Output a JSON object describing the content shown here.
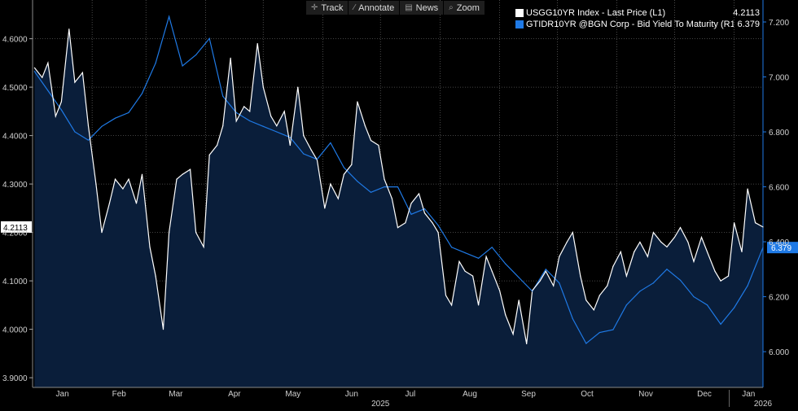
{
  "toolbar": {
    "items": [
      {
        "label": "Track",
        "icon": "crosshair-icon"
      },
      {
        "label": "Annotate",
        "icon": "pencil-icon"
      },
      {
        "label": "News",
        "icon": "newspaper-icon"
      },
      {
        "label": "Zoom",
        "icon": "magnifier-icon"
      }
    ]
  },
  "legend": {
    "items": [
      {
        "name": "USGG10YR Index - Last Price (L1)",
        "value": "4.2113",
        "color": "#ffffff"
      },
      {
        "name": "GTIDR10YR @BGN Corp - Bid Yield To Maturity (R1)",
        "value": "6.379",
        "color": "#1f7ae6"
      }
    ]
  },
  "chart_data": {
    "type": "line",
    "title": "",
    "xlabel": "",
    "ylabel": "",
    "x_axis": {
      "ticks": [
        "Jan",
        "Feb",
        "Mar",
        "Apr",
        "May",
        "Jun",
        "Jul",
        "Aug",
        "Sep",
        "Oct",
        "Nov",
        "Dec",
        "Jan"
      ],
      "year_labels": [
        "2025",
        "2026"
      ],
      "range": [
        "2025-01-01",
        "2026-01-16"
      ]
    },
    "y_left": {
      "ticks": [
        "3.9000",
        "4.0000",
        "4.1000",
        "4.2000",
        "4.3000",
        "4.4000",
        "4.5000",
        "4.6000"
      ],
      "range": [
        3.88,
        4.68
      ],
      "last_label": "4.2113"
    },
    "y_right": {
      "ticks": [
        "6.000",
        "6.200",
        "6.400",
        "6.600",
        "6.800",
        "7.000",
        "7.200"
      ],
      "range": [
        5.87,
        7.28
      ],
      "last_label": "6.379"
    },
    "grid": true,
    "legend_position": "top-right",
    "series": [
      {
        "name": "USGG10YR Index - Last Price (L1)",
        "axis": "left",
        "color": "#ffffff",
        "area_fill": "#0a1e3a",
        "x": [
          "2025-01-02",
          "2025-01-06",
          "2025-01-09",
          "2025-01-13",
          "2025-01-16",
          "2025-01-20",
          "2025-01-23",
          "2025-01-27",
          "2025-01-30",
          "2025-02-03",
          "2025-02-06",
          "2025-02-10",
          "2025-02-13",
          "2025-02-17",
          "2025-02-20",
          "2025-02-24",
          "2025-02-27",
          "2025-03-03",
          "2025-03-06",
          "2025-03-10",
          "2025-03-13",
          "2025-03-17",
          "2025-03-20",
          "2025-03-24",
          "2025-03-27",
          "2025-03-31",
          "2025-04-03",
          "2025-04-07",
          "2025-04-10",
          "2025-04-14",
          "2025-04-17",
          "2025-04-21",
          "2025-04-24",
          "2025-04-28",
          "2025-05-01",
          "2025-05-05",
          "2025-05-08",
          "2025-05-12",
          "2025-05-15",
          "2025-05-19",
          "2025-05-22",
          "2025-05-26",
          "2025-05-29",
          "2025-06-02",
          "2025-06-05",
          "2025-06-09",
          "2025-06-12",
          "2025-06-16",
          "2025-06-19",
          "2025-06-23",
          "2025-06-26",
          "2025-06-30",
          "2025-07-03",
          "2025-07-07",
          "2025-07-10",
          "2025-07-14",
          "2025-07-17",
          "2025-07-21",
          "2025-07-24",
          "2025-07-28",
          "2025-07-31",
          "2025-08-04",
          "2025-08-07",
          "2025-08-11",
          "2025-08-14",
          "2025-08-18",
          "2025-08-21",
          "2025-08-25",
          "2025-08-28",
          "2025-09-01",
          "2025-09-04",
          "2025-09-08",
          "2025-09-11",
          "2025-09-15",
          "2025-09-18",
          "2025-09-22",
          "2025-09-25",
          "2025-09-29",
          "2025-10-02",
          "2025-10-06",
          "2025-10-09",
          "2025-10-13",
          "2025-10-16",
          "2025-10-20",
          "2025-10-23",
          "2025-10-27",
          "2025-10-30",
          "2025-11-03",
          "2025-11-06",
          "2025-11-10",
          "2025-11-13",
          "2025-11-17",
          "2025-11-20",
          "2025-11-24",
          "2025-11-27",
          "2025-12-01",
          "2025-12-04",
          "2025-12-08",
          "2025-12-11",
          "2025-12-15",
          "2025-12-18",
          "2025-12-22",
          "2025-12-25",
          "2025-12-29",
          "2026-01-01",
          "2026-01-05",
          "2026-01-08",
          "2026-01-12",
          "2026-01-16"
        ],
        "values": [
          4.54,
          4.52,
          4.55,
          4.44,
          4.47,
          4.62,
          4.51,
          4.53,
          4.42,
          4.3,
          4.2,
          4.26,
          4.31,
          4.29,
          4.31,
          4.26,
          4.32,
          4.17,
          4.11,
          4.0,
          4.2,
          4.31,
          4.32,
          4.33,
          4.2,
          4.17,
          4.36,
          4.38,
          4.42,
          4.56,
          4.43,
          4.46,
          4.45,
          4.59,
          4.5,
          4.44,
          4.42,
          4.45,
          4.38,
          4.5,
          4.4,
          4.37,
          4.35,
          4.25,
          4.3,
          4.27,
          4.32,
          4.34,
          4.47,
          4.42,
          4.39,
          4.38,
          4.31,
          4.27,
          4.21,
          4.22,
          4.26,
          4.28,
          4.24,
          4.22,
          4.2,
          4.07,
          4.05,
          4.14,
          4.12,
          4.11,
          4.05,
          4.15,
          4.12,
          4.08,
          4.03,
          3.99,
          4.06,
          3.97,
          4.08,
          4.1,
          4.12,
          4.09,
          4.15,
          4.18,
          4.2,
          4.11,
          4.06,
          4.04,
          4.07,
          4.09,
          4.13,
          4.16,
          4.11,
          4.16,
          4.18,
          4.15,
          4.2,
          4.18,
          4.17,
          4.19,
          4.21,
          4.18,
          4.14,
          4.19,
          4.16,
          4.12,
          4.1,
          4.11,
          4.22,
          4.16,
          4.29,
          4.22,
          4.2113
        ]
      },
      {
        "name": "GTIDR10YR @BGN Corp - Bid Yield To Maturity (R1)",
        "axis": "right",
        "color": "#1f7ae6",
        "x": [
          "2025-01-02",
          "2025-01-09",
          "2025-01-16",
          "2025-01-23",
          "2025-01-30",
          "2025-02-06",
          "2025-02-13",
          "2025-02-20",
          "2025-02-27",
          "2025-03-06",
          "2025-03-13",
          "2025-03-20",
          "2025-03-27",
          "2025-04-03",
          "2025-04-10",
          "2025-04-17",
          "2025-04-24",
          "2025-05-01",
          "2025-05-08",
          "2025-05-15",
          "2025-05-22",
          "2025-05-29",
          "2025-06-05",
          "2025-06-12",
          "2025-06-19",
          "2025-06-26",
          "2025-07-03",
          "2025-07-10",
          "2025-07-17",
          "2025-07-24",
          "2025-07-31",
          "2025-08-07",
          "2025-08-14",
          "2025-08-21",
          "2025-08-28",
          "2025-09-04",
          "2025-09-11",
          "2025-09-18",
          "2025-09-25",
          "2025-10-02",
          "2025-10-09",
          "2025-10-16",
          "2025-10-23",
          "2025-10-30",
          "2025-11-06",
          "2025-11-13",
          "2025-11-20",
          "2025-11-27",
          "2025-12-04",
          "2025-12-11",
          "2025-12-18",
          "2025-12-25",
          "2026-01-01",
          "2026-01-08",
          "2026-01-16"
        ],
        "values": [
          7.02,
          6.95,
          6.88,
          6.8,
          6.77,
          6.82,
          6.85,
          6.87,
          6.94,
          7.05,
          7.22,
          7.04,
          7.08,
          7.14,
          6.93,
          6.87,
          6.84,
          6.82,
          6.8,
          6.78,
          6.72,
          6.7,
          6.76,
          6.67,
          6.62,
          6.58,
          6.6,
          6.6,
          6.5,
          6.52,
          6.46,
          6.38,
          6.36,
          6.34,
          6.38,
          6.32,
          6.27,
          6.22,
          6.3,
          6.25,
          6.12,
          6.03,
          6.07,
          6.08,
          6.17,
          6.22,
          6.25,
          6.3,
          6.26,
          6.2,
          6.17,
          6.1,
          6.16,
          6.24,
          6.379
        ]
      }
    ]
  }
}
